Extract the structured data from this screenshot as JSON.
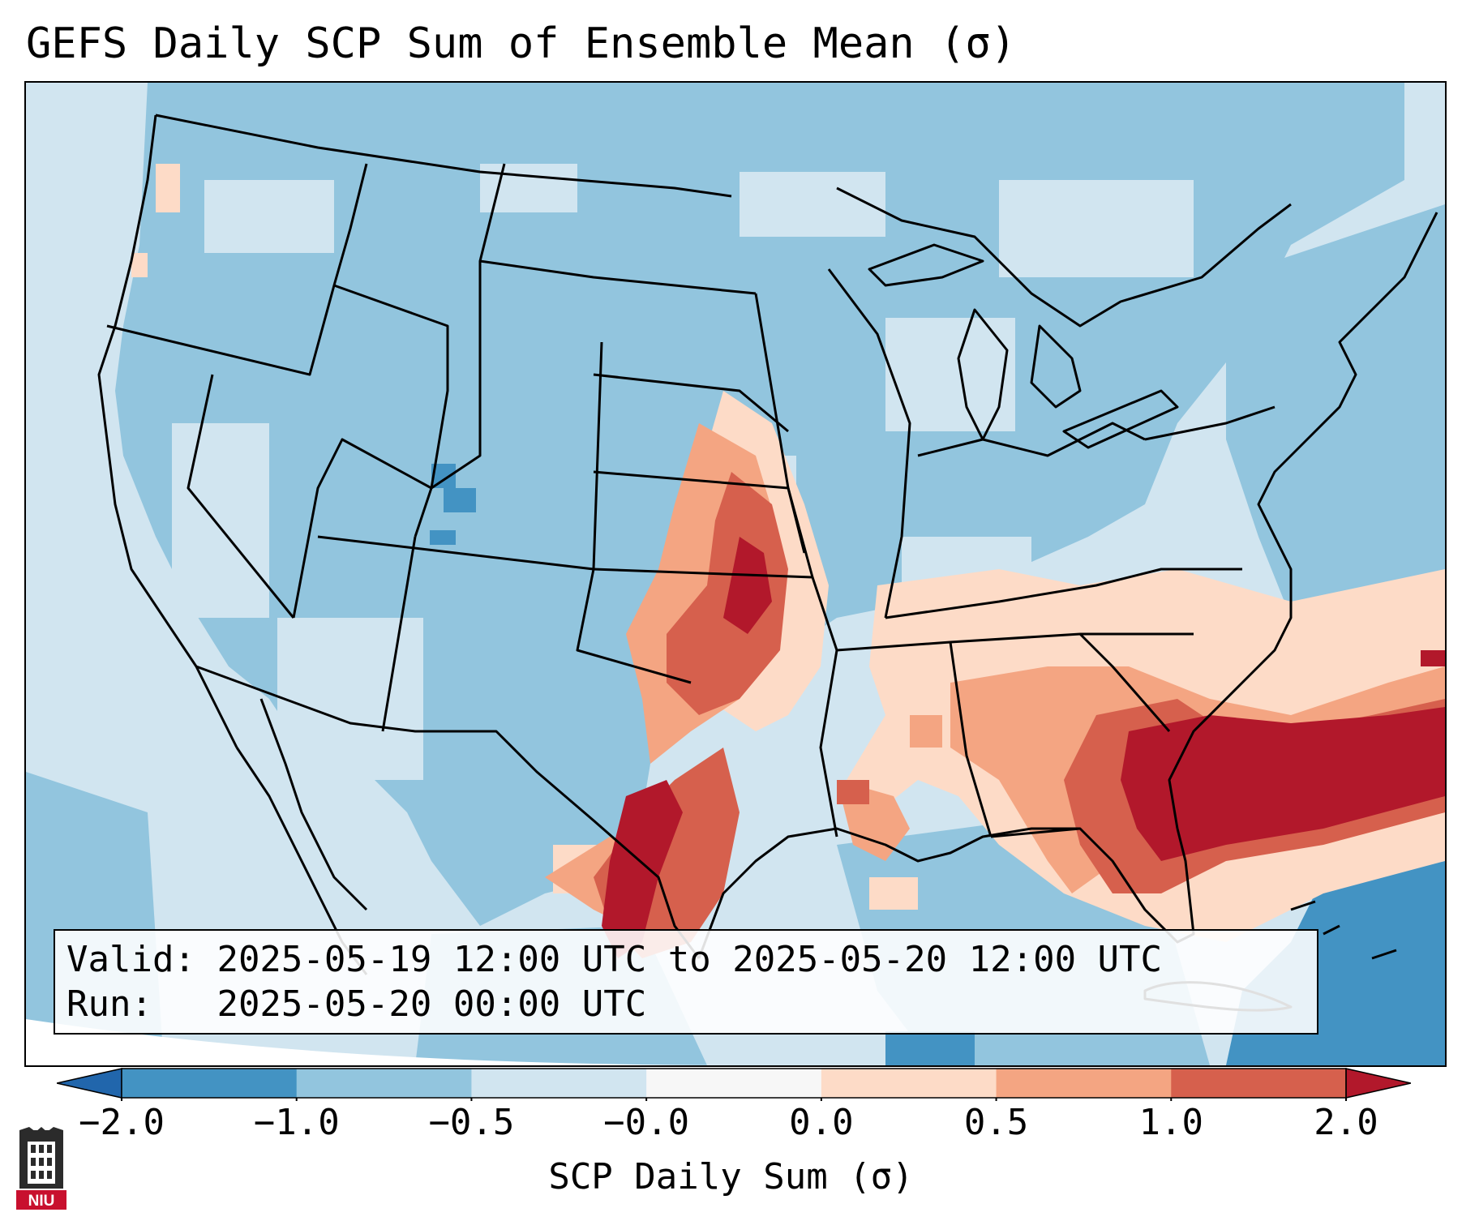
{
  "title": "GEFS Daily SCP Sum of Ensemble Mean (σ)",
  "info": {
    "valid_label": "Valid:",
    "valid_value": "2025-05-19 12:00 UTC to 2025-05-20 12:00 UTC",
    "run_label": "Run:",
    "run_value": "2025-05-20 00:00 UTC"
  },
  "colorbar": {
    "label": "SCP Daily Sum (σ)",
    "ticks": [
      "−2.0",
      "−1.0",
      "−0.5",
      "−0.0",
      "0.0",
      "0.5",
      "1.0",
      "2.0"
    ],
    "colors": [
      "#4393c3",
      "#92c5de",
      "#d1e5f0",
      "#f7f7f7",
      "#fddbc7",
      "#f4a582",
      "#d6604d",
      "#b2182b"
    ],
    "extend_low": "#2166ac",
    "extend_high": "#b2182b"
  },
  "logo": {
    "icon": "niu-university-logo",
    "text": "NIU"
  }
}
